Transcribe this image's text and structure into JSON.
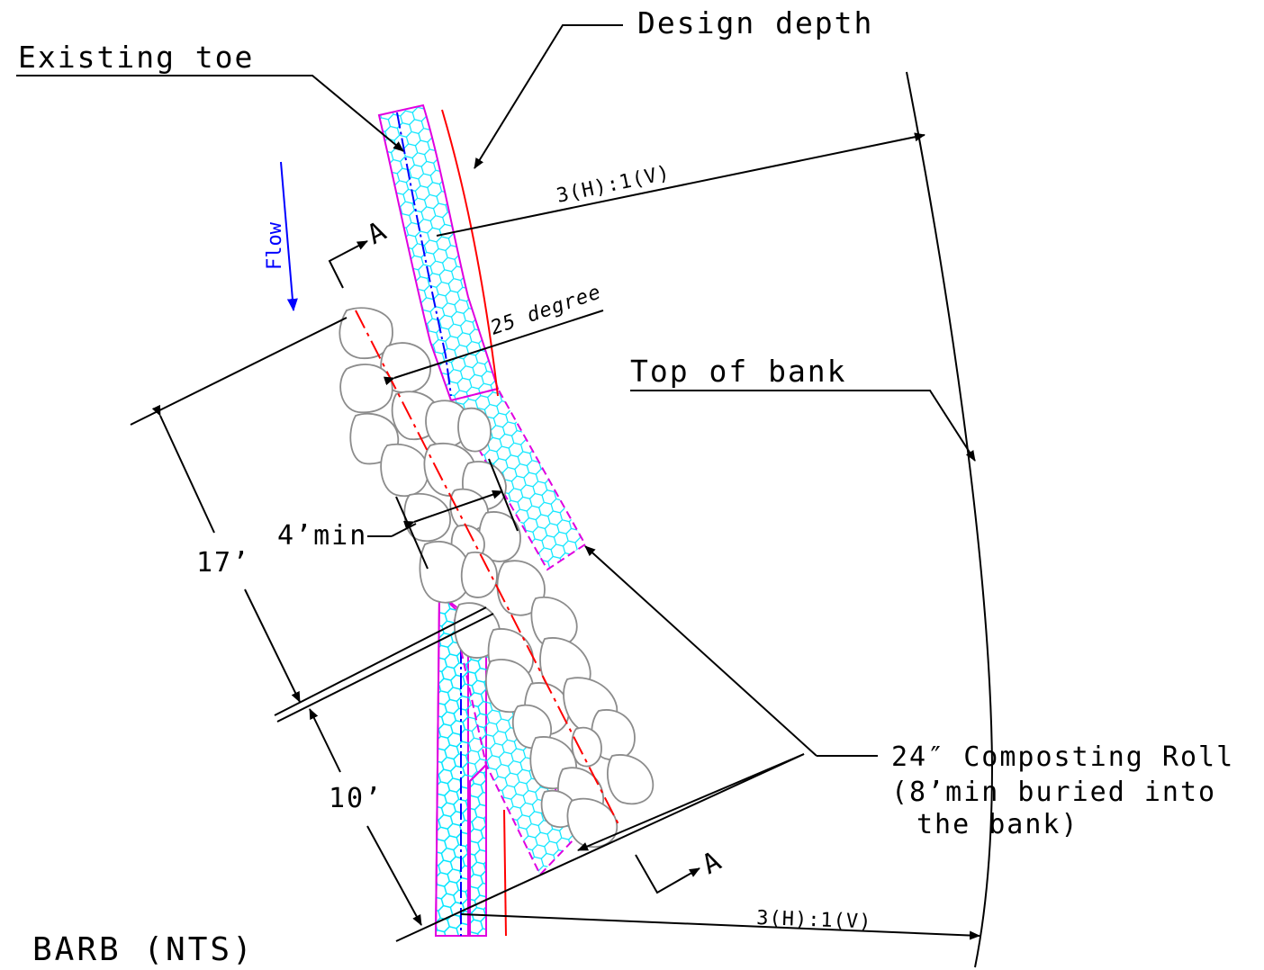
{
  "title": "BARB (NTS)",
  "labels": {
    "design_depth": "Design depth",
    "existing_toe": "Existing toe",
    "flow": "Flow",
    "section_mark_top": "A",
    "section_mark_bottom": "A",
    "slope_top": "3(H):1(V)",
    "slope_bottom": "3(H):1(V)",
    "angle": "25 degree",
    "top_of_bank": "Top of bank",
    "width_min": "4’min",
    "dim_17": "17’",
    "dim_10": "10’",
    "roll_line1": "24″ Composting Roll",
    "roll_line2": "(8’min buried into",
    "roll_line3": "the bank)"
  },
  "colors": {
    "linework": "#000000",
    "rock_outline": "#8c8c8c",
    "roll_outline": "#e000e0",
    "roll_fill_hex": "#00e5ff",
    "centerline_red": "#ff0000",
    "flow_blue": "#0000ff"
  }
}
